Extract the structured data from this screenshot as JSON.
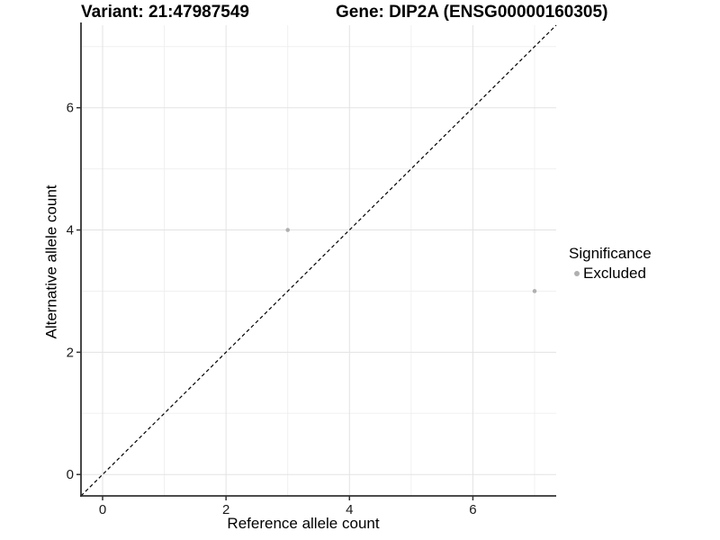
{
  "header": {
    "variant_title": "Variant: 21:47987549",
    "gene_title": "Gene: DIP2A (ENSG00000160305)"
  },
  "axes": {
    "x": {
      "label": "Reference allele count",
      "ticks": [
        0,
        2,
        4,
        6
      ]
    },
    "y": {
      "label": "Alternative allele count",
      "ticks": [
        0,
        2,
        4,
        6
      ]
    }
  },
  "legend": {
    "title": "Significance",
    "items": [
      {
        "label": "Excluded",
        "color": "#b0b0b0"
      }
    ]
  },
  "colors": {
    "background": "#ffffff",
    "grid_major": "#e3e3e3",
    "grid_minor": "#f0f0f0",
    "axis_line": "#333333",
    "tick_label": "#1a1a1a",
    "reference_line": "#000000",
    "point_excluded": "#b0b0b0"
  },
  "chart_data": {
    "type": "scatter",
    "title": "Variant: 21:47987549 / Gene: DIP2A (ENSG00000160305)",
    "xlabel": "Reference allele count",
    "ylabel": "Alternative allele count",
    "xlim": [
      -0.35,
      7.35
    ],
    "ylim": [
      -0.35,
      7.35
    ],
    "x_ticks": [
      0,
      2,
      4,
      6
    ],
    "y_ticks": [
      0,
      2,
      4,
      6
    ],
    "grid": {
      "major": [
        0,
        2,
        4,
        6
      ],
      "minor": [
        1,
        3,
        5,
        7
      ]
    },
    "series": [
      {
        "name": "Excluded",
        "color": "#b0b0b0",
        "point_radius": 2.3,
        "points": [
          {
            "x": 3,
            "y": 4
          },
          {
            "x": 7,
            "y": 3
          }
        ]
      }
    ],
    "reference_line": {
      "kind": "identity",
      "style": "dashed",
      "color": "#000000",
      "x1": -0.35,
      "y1": -0.35,
      "x2": 7.35,
      "y2": 7.35
    },
    "legend_position": "right",
    "legend_title": "Significance"
  }
}
